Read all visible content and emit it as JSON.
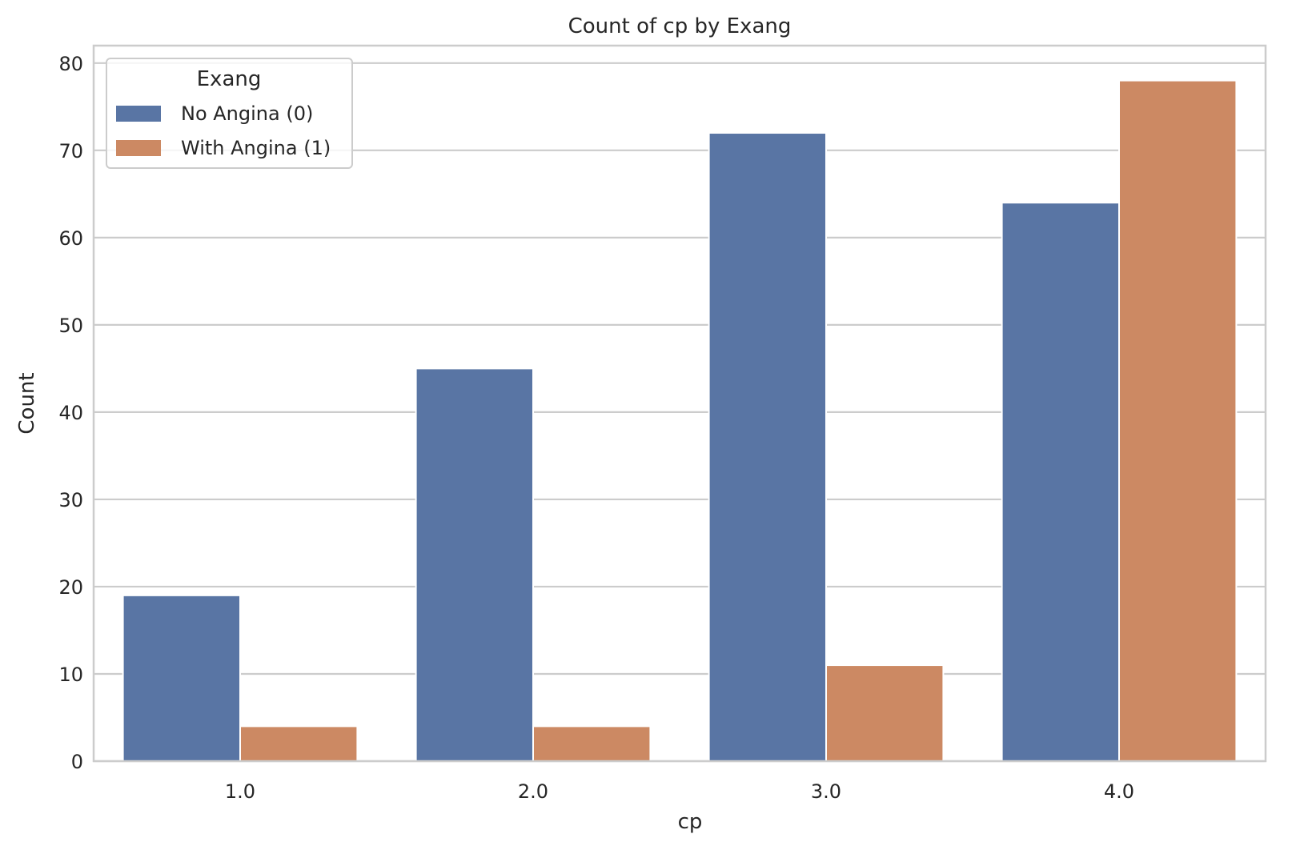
{
  "chart_data": {
    "type": "bar",
    "title": "Count of cp by Exang",
    "xlabel": "cp",
    "ylabel": "Count",
    "categories": [
      "1.0",
      "2.0",
      "3.0",
      "4.0"
    ],
    "series": [
      {
        "name": "No Angina (0)",
        "values": [
          19,
          45,
          72,
          64
        ],
        "color": "#5975a4"
      },
      {
        "name": "With Angina (1)",
        "values": [
          4,
          4,
          11,
          78
        ],
        "color": "#cc8963"
      }
    ],
    "ylim": [
      0,
      82
    ],
    "yticks": [
      0,
      10,
      20,
      30,
      40,
      50,
      60,
      70,
      80
    ],
    "grid": true,
    "legend": {
      "title": "Exang",
      "placement": "top-left"
    }
  }
}
